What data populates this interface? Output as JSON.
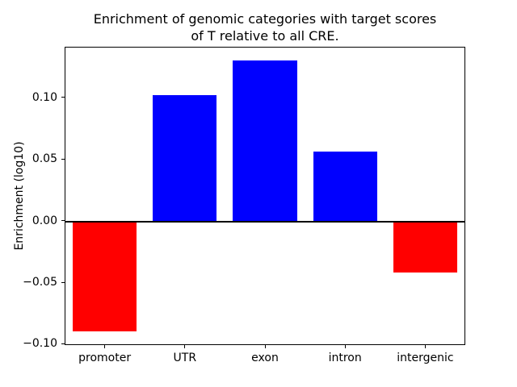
{
  "chart_data": {
    "type": "bar",
    "title": "Enrichment of genomic categories with target scores\nof T relative to all CRE.",
    "ylabel": "Enrichment (log10)",
    "xlabel": "",
    "categories": [
      "promoter",
      "UTR",
      "exon",
      "intron",
      "intergenic"
    ],
    "values": [
      -0.09,
      0.102,
      0.13,
      0.056,
      -0.042
    ],
    "bar_colors": [
      "#ff0000",
      "#0000ff",
      "#0000ff",
      "#0000ff",
      "#ff0000"
    ],
    "ylim": [
      -0.101,
      0.141
    ],
    "yticks": [
      -0.1,
      -0.05,
      0.0,
      0.05,
      0.1
    ],
    "ytick_labels": [
      "−0.10",
      "−0.05",
      "0.00",
      "0.05",
      "0.10"
    ],
    "zero_line": true,
    "bar_width_frac": 0.8,
    "grid": false,
    "legend": "none",
    "positive_color": "#0000ff",
    "negative_color": "#ff0000"
  }
}
